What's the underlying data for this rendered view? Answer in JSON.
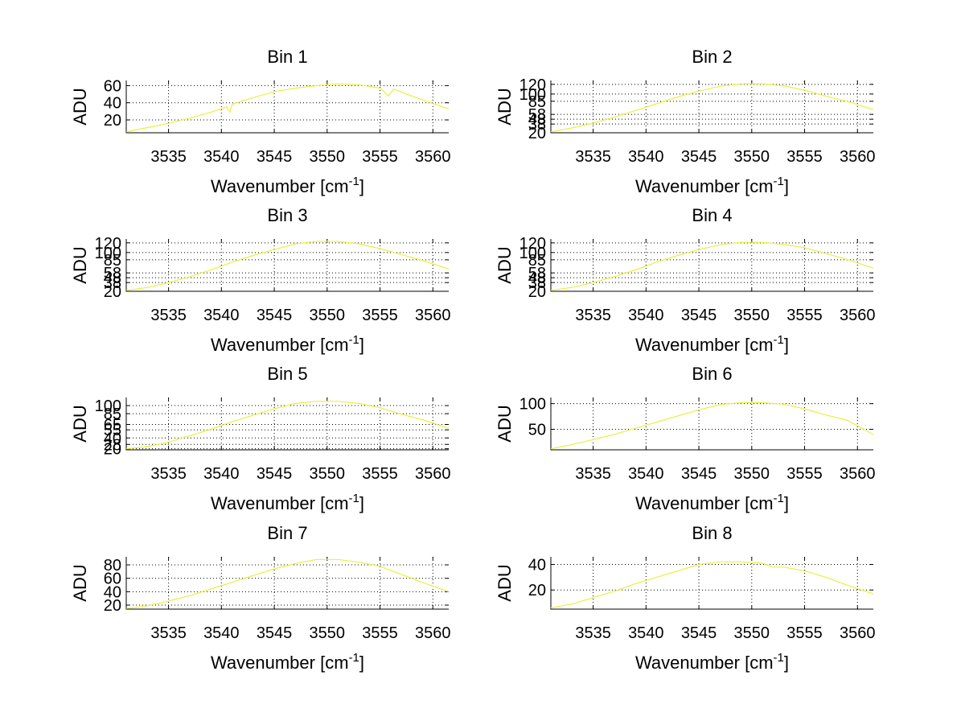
{
  "figure": {
    "background": "#ffffff",
    "line_color": "#e8f040"
  },
  "chart_data": [
    {
      "type": "line",
      "title": "Bin 1",
      "xlabel": "Wavenumber [cm",
      "xlabel_sup": "-1",
      "xlabel_tail": "]",
      "ylabel": "ADU",
      "xlim": [
        3531,
        3561.5
      ],
      "ylim": [
        5,
        66
      ],
      "xticks": [
        3535,
        3540,
        3545,
        3550,
        3555,
        3560
      ],
      "yticks": [
        20,
        40,
        60
      ],
      "grid": true,
      "series": [
        {
          "x": [
            3531,
            3533,
            3535,
            3537,
            3539,
            3540.5,
            3540.8,
            3541,
            3543,
            3545,
            3547,
            3549,
            3551,
            3553,
            3555,
            3555.8,
            3556.3,
            3558,
            3560,
            3561.5
          ],
          "y": [
            6,
            11,
            16,
            22,
            29,
            35,
            29,
            38,
            46,
            53,
            57,
            60,
            62,
            61,
            57,
            48,
            56,
            48,
            39,
            33
          ]
        }
      ]
    },
    {
      "type": "line",
      "title": "Bin 2",
      "xlabel": "Wavenumber [cm",
      "xlabel_sup": "-1",
      "xlabel_tail": "]",
      "ylabel": "ADU",
      "xlim": [
        3531,
        3561.5
      ],
      "ylim": [
        20,
        128
      ],
      "xticks": [
        3535,
        3540,
        3545,
        3550,
        3555,
        3560
      ],
      "yticks": [
        20,
        38,
        48,
        58,
        85,
        100,
        120
      ],
      "grid": true,
      "series": [
        {
          "x": [
            3531,
            3533,
            3535,
            3537,
            3539,
            3541,
            3543,
            3545,
            3547,
            3549,
            3551,
            3553,
            3555,
            3557,
            3559,
            3561.5
          ],
          "y": [
            22,
            30,
            40,
            52,
            66,
            80,
            94,
            106,
            116,
            121,
            121,
            117,
            108,
            96,
            85,
            68
          ]
        }
      ]
    },
    {
      "type": "line",
      "title": "Bin 3",
      "xlabel": "Wavenumber [cm",
      "xlabel_sup": "-1",
      "xlabel_tail": "]",
      "ylabel": "ADU",
      "xlim": [
        3531,
        3561.5
      ],
      "ylim": [
        20,
        128
      ],
      "xticks": [
        3535,
        3540,
        3545,
        3550,
        3555,
        3560
      ],
      "yticks": [
        20,
        38,
        48,
        58,
        85,
        100,
        120
      ],
      "grid": true,
      "series": [
        {
          "x": [
            3531,
            3533,
            3535,
            3537,
            3539,
            3541,
            3543,
            3545,
            3547,
            3549,
            3551,
            3553,
            3555,
            3557,
            3559,
            3561.5
          ],
          "y": [
            22,
            28,
            38,
            50,
            64,
            80,
            94,
            106,
            118,
            123,
            123,
            118,
            108,
            96,
            84,
            66
          ]
        }
      ]
    },
    {
      "type": "line",
      "title": "Bin 4",
      "xlabel": "Wavenumber [cm",
      "xlabel_sup": "-1",
      "xlabel_tail": "]",
      "ylabel": "ADU",
      "xlim": [
        3531,
        3561.5
      ],
      "ylim": [
        20,
        128
      ],
      "xticks": [
        3535,
        3540,
        3545,
        3550,
        3555,
        3560
      ],
      "yticks": [
        20,
        38,
        48,
        58,
        85,
        100,
        120
      ],
      "grid": true,
      "series": [
        {
          "x": [
            3531,
            3533,
            3535,
            3537,
            3539,
            3541,
            3543,
            3545,
            3547,
            3549,
            3551,
            3553,
            3555,
            3557,
            3559,
            3561.5
          ],
          "y": [
            22,
            28,
            38,
            50,
            64,
            80,
            94,
            106,
            116,
            121,
            121,
            117,
            110,
            98,
            86,
            68
          ]
        }
      ]
    },
    {
      "type": "line",
      "title": "Bin 5",
      "xlabel": "Wavenumber [cm",
      "xlabel_sup": "-1",
      "xlabel_tail": "]",
      "ylabel": "ADU",
      "xlim": [
        3531,
        3561.5
      ],
      "ylim": [
        18,
        115
      ],
      "xticks": [
        3535,
        3540,
        3545,
        3550,
        3555,
        3560
      ],
      "yticks": [
        20,
        28,
        40,
        55,
        65,
        85,
        100
      ],
      "grid": true,
      "series": [
        {
          "x": [
            3531,
            3533,
            3535,
            3537,
            3539,
            3541,
            3543,
            3545,
            3547,
            3549,
            3551,
            3553,
            3555,
            3557,
            3559,
            3561.5
          ],
          "y": [
            20,
            24,
            32,
            44,
            56,
            70,
            82,
            94,
            104,
            108,
            108,
            104,
            96,
            84,
            74,
            58
          ]
        }
      ]
    },
    {
      "type": "line",
      "title": "Bin 6",
      "xlabel": "Wavenumber [cm",
      "xlabel_sup": "-1",
      "xlabel_tail": "]",
      "ylabel": "ADU",
      "xlim": [
        3531,
        3561.5
      ],
      "ylim": [
        10,
        112
      ],
      "xticks": [
        3535,
        3540,
        3545,
        3550,
        3555,
        3560
      ],
      "yticks": [
        50,
        100
      ],
      "grid": true,
      "series": [
        {
          "x": [
            3531,
            3533,
            3535,
            3537,
            3539,
            3541,
            3543,
            3545,
            3547,
            3549,
            3551,
            3553,
            3555,
            3557,
            3559,
            3561.5
          ],
          "y": [
            12,
            20,
            30,
            40,
            52,
            64,
            76,
            88,
            98,
            102,
            102,
            99,
            90,
            78,
            68,
            40
          ]
        }
      ]
    },
    {
      "type": "line",
      "title": "Bin 7",
      "xlabel": "Wavenumber [cm",
      "xlabel_sup": "-1",
      "xlabel_tail": "]",
      "ylabel": "ADU",
      "xlim": [
        3531,
        3561.5
      ],
      "ylim": [
        14,
        92
      ],
      "xticks": [
        3535,
        3540,
        3545,
        3550,
        3555,
        3560
      ],
      "yticks": [
        20,
        40,
        60,
        80
      ],
      "grid": true,
      "series": [
        {
          "x": [
            3531,
            3533,
            3535,
            3537,
            3539,
            3541,
            3543,
            3545,
            3547,
            3549,
            3551,
            3553,
            3555,
            3557,
            3559,
            3561.5
          ],
          "y": [
            15,
            19,
            26,
            34,
            44,
            54,
            64,
            74,
            82,
            88,
            88,
            84,
            78,
            66,
            54,
            40
          ]
        }
      ]
    },
    {
      "type": "line",
      "title": "Bin 8",
      "xlabel": "Wavenumber [cm",
      "xlabel_sup": "-1",
      "xlabel_tail": "]",
      "ylabel": "ADU",
      "xlim": [
        3531,
        3561.5
      ],
      "ylim": [
        5,
        46
      ],
      "xticks": [
        3535,
        3540,
        3545,
        3550,
        3555,
        3560
      ],
      "yticks": [
        20,
        40
      ],
      "grid": true,
      "series": [
        {
          "x": [
            3531,
            3533,
            3535,
            3537,
            3539,
            3541,
            3543,
            3545,
            3547,
            3549,
            3551,
            3552,
            3553,
            3555,
            3557,
            3559,
            3561.5
          ],
          "y": [
            6,
            9,
            14,
            19,
            25,
            30,
            35,
            40,
            42,
            42,
            41,
            38,
            38,
            35,
            30,
            24,
            17
          ]
        }
      ]
    }
  ]
}
